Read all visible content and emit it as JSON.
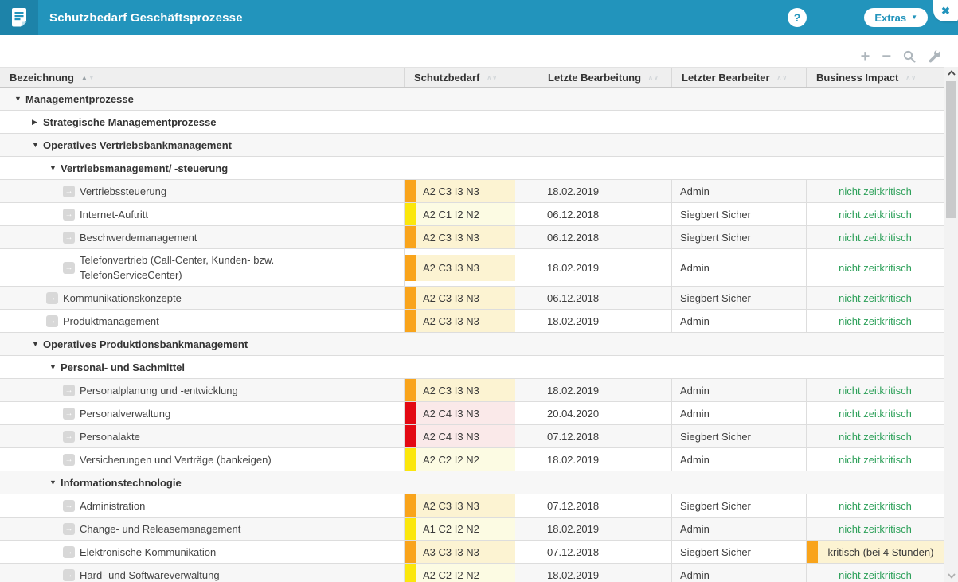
{
  "app": {
    "title": "Schutzbedarf Geschäftsprozesse",
    "help_label": "?",
    "extras_label": "Extras",
    "extras_chevron": "▼",
    "close_glyph": "✖"
  },
  "toolbar": {
    "add_glyph": "+",
    "remove_glyph": "−"
  },
  "table": {
    "columns": [
      {
        "label": "Bezeichnung",
        "sorted": "asc"
      },
      {
        "label": "Schutzbedarf",
        "sorted": null
      },
      {
        "label": "Letzte Bearbeitung",
        "sorted": null
      },
      {
        "label": "Letzter Bearbeiter",
        "sorted": null
      },
      {
        "label": "Business Impact",
        "sorted": null
      }
    ],
    "rows": [
      {
        "type": "group",
        "level": 0,
        "expanded": true,
        "label": "Managementprozesse"
      },
      {
        "type": "group",
        "level": 1,
        "expanded": false,
        "label": "Strategische Managementprozesse"
      },
      {
        "type": "group",
        "level": 1,
        "expanded": true,
        "label": "Operatives Vertriebsbankmanagement"
      },
      {
        "type": "group",
        "level": 2,
        "expanded": true,
        "label": "Vertriebsmanagement/ -steuerung"
      },
      {
        "type": "leaf",
        "level": 3,
        "label": "Vertriebssteuerung",
        "schutzbedarf": "A2 C3 I3 N3",
        "severity": "orange",
        "letzte_bearbeitung": "18.02.2019",
        "letzter_bearbeiter": "Admin",
        "business_impact": "nicht zeitkritisch",
        "impact_type": "ok"
      },
      {
        "type": "leaf",
        "level": 3,
        "label": "Internet-Auftritt",
        "schutzbedarf": "A2 C1 I2 N2",
        "severity": "yellow",
        "letzte_bearbeitung": "06.12.2018",
        "letzter_bearbeiter": "Siegbert Sicher",
        "business_impact": "nicht zeitkritisch",
        "impact_type": "ok"
      },
      {
        "type": "leaf",
        "level": 3,
        "label": "Beschwerdemanagement",
        "schutzbedarf": "A2 C3 I3 N3",
        "severity": "orange",
        "letzte_bearbeitung": "06.12.2018",
        "letzter_bearbeiter": "Siegbert Sicher",
        "business_impact": "nicht zeitkritisch",
        "impact_type": "ok"
      },
      {
        "type": "leaf",
        "level": 3,
        "tall": true,
        "label": "Telefonvertrieb (Call-Center, Kunden- bzw. TelefonServiceCenter)",
        "schutzbedarf": "A2 C3 I3 N3",
        "severity": "orange",
        "letzte_bearbeitung": "18.02.2019",
        "letzter_bearbeiter": "Admin",
        "business_impact": "nicht zeitkritisch",
        "impact_type": "ok"
      },
      {
        "type": "leaf",
        "level": 2,
        "label": "Kommunikationskonzepte",
        "schutzbedarf": "A2 C3 I3 N3",
        "severity": "orange",
        "letzte_bearbeitung": "06.12.2018",
        "letzter_bearbeiter": "Siegbert Sicher",
        "business_impact": "nicht zeitkritisch",
        "impact_type": "ok"
      },
      {
        "type": "leaf",
        "level": 2,
        "label": "Produktmanagement",
        "schutzbedarf": "A2 C3 I3 N3",
        "severity": "orange",
        "letzte_bearbeitung": "18.02.2019",
        "letzter_bearbeiter": "Admin",
        "business_impact": "nicht zeitkritisch",
        "impact_type": "ok"
      },
      {
        "type": "group",
        "level": 1,
        "expanded": true,
        "label": "Operatives Produktionsbankmanagement"
      },
      {
        "type": "group",
        "level": 2,
        "expanded": true,
        "label": "Personal- und Sachmittel"
      },
      {
        "type": "leaf",
        "level": 3,
        "label": "Personalplanung und -entwicklung",
        "schutzbedarf": "A2 C3 I3 N3",
        "severity": "orange",
        "letzte_bearbeitung": "18.02.2019",
        "letzter_bearbeiter": "Admin",
        "business_impact": "nicht zeitkritisch",
        "impact_type": "ok"
      },
      {
        "type": "leaf",
        "level": 3,
        "label": "Personalverwaltung",
        "schutzbedarf": "A2 C4 I3 N3",
        "severity": "red",
        "letzte_bearbeitung": "20.04.2020",
        "letzter_bearbeiter": "Admin",
        "business_impact": "nicht zeitkritisch",
        "impact_type": "ok"
      },
      {
        "type": "leaf",
        "level": 3,
        "label": "Personalakte",
        "schutzbedarf": "A2 C4 I3 N3",
        "severity": "red",
        "letzte_bearbeitung": "07.12.2018",
        "letzter_bearbeiter": "Siegbert Sicher",
        "business_impact": "nicht zeitkritisch",
        "impact_type": "ok"
      },
      {
        "type": "leaf",
        "level": 3,
        "label": "Versicherungen und Verträge (bankeigen)",
        "schutzbedarf": "A2 C2 I2 N2",
        "severity": "yellow",
        "letzte_bearbeitung": "18.02.2019",
        "letzter_bearbeiter": "Admin",
        "business_impact": "nicht zeitkritisch",
        "impact_type": "ok"
      },
      {
        "type": "group",
        "level": 2,
        "expanded": true,
        "label": "Informationstechnologie"
      },
      {
        "type": "leaf",
        "level": 3,
        "label": "Administration",
        "schutzbedarf": "A2 C3 I3 N3",
        "severity": "orange",
        "letzte_bearbeitung": "07.12.2018",
        "letzter_bearbeiter": "Siegbert Sicher",
        "business_impact": "nicht zeitkritisch",
        "impact_type": "ok"
      },
      {
        "type": "leaf",
        "level": 3,
        "label": "Change- und Releasemanagement",
        "schutzbedarf": "A1 C2 I2 N2",
        "severity": "yellow",
        "letzte_bearbeitung": "18.02.2019",
        "letzter_bearbeiter": "Admin",
        "business_impact": "nicht zeitkritisch",
        "impact_type": "ok"
      },
      {
        "type": "leaf",
        "level": 3,
        "label": "Elektronische Kommunikation",
        "schutzbedarf": "A3 C3 I3 N3",
        "severity": "orange",
        "letzte_bearbeitung": "07.12.2018",
        "letzter_bearbeiter": "Siegbert Sicher",
        "business_impact": "kritisch (bei 4 Stunden)",
        "impact_type": "critical",
        "impact_severity": "orange"
      },
      {
        "type": "leaf",
        "level": 3,
        "label": "Hard- und Softwareverwaltung",
        "schutzbedarf": "A2 C2 I2 N2",
        "severity": "yellow",
        "letzte_bearbeitung": "18.02.2019",
        "letzter_bearbeiter": "Admin",
        "business_impact": "nicht zeitkritisch",
        "impact_type": "ok"
      }
    ]
  },
  "colors": {
    "header_blue": "#2294BC",
    "impact_ok_green": "#2FA15B",
    "severity": {
      "orange": {
        "bar": "#F9A41B",
        "bg": "#FCF3D2"
      },
      "yellow": {
        "bar": "#FBE70C",
        "bg": "#FCFBE3"
      },
      "red": {
        "bar": "#E30913",
        "bg": "#FAE9E9"
      }
    }
  }
}
